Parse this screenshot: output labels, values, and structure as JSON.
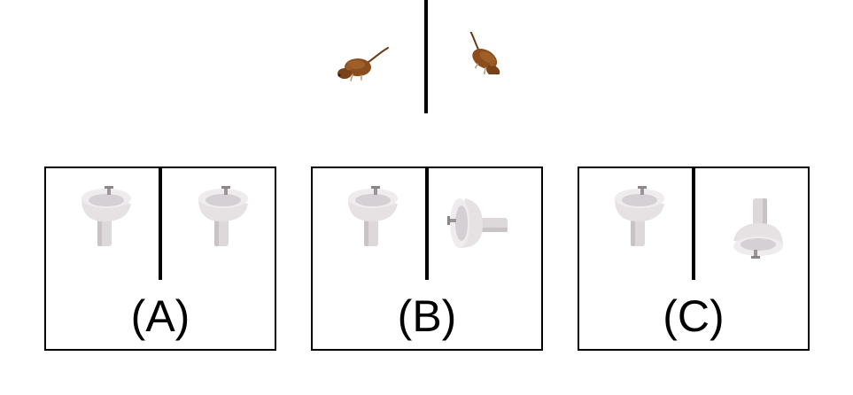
{
  "prompt": {
    "left_icon": "mouse-icon",
    "right_icon": "mouse-icon"
  },
  "options": [
    {
      "label": "(A)",
      "left_icon": "sink-icon",
      "right_icon": "sink-icon"
    },
    {
      "label": "(B)",
      "left_icon": "sink-icon",
      "right_icon": "sink-icon"
    },
    {
      "label": "(C)",
      "left_icon": "sink-icon",
      "right_icon": "sink-icon"
    }
  ],
  "colors": {
    "mouse_body": "#8a4e1e",
    "mouse_dark": "#5a3010",
    "sink": "#e6e2e4",
    "sink_shadow": "#b8b2b5",
    "line": "#000000"
  }
}
